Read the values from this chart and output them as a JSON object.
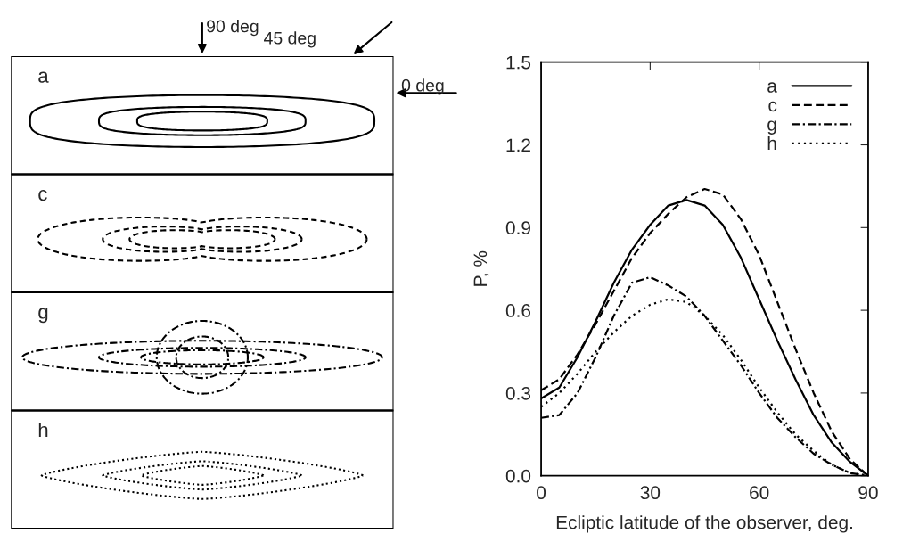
{
  "chart_data": [
    {
      "type": "other",
      "annotations": [
        "a",
        "c",
        "g",
        "h",
        "90 deg",
        "45 deg",
        "0 deg"
      ]
    },
    {
      "type": "line",
      "xlabel": "Ecliptic latitude of the observer, deg.",
      "ylabel": "P, %",
      "x": [
        0,
        5,
        10,
        15,
        20,
        25,
        30,
        35,
        40,
        45,
        50,
        55,
        60,
        65,
        70,
        75,
        80,
        85,
        90
      ],
      "xlim": [
        0,
        90
      ],
      "xticks": [
        0,
        30,
        60,
        90
      ],
      "ylim": [
        0,
        1.5
      ],
      "yticks": [
        {
          "value": 0,
          "label": "0.0"
        },
        0.3,
        0.6,
        0.9,
        1.2,
        1.5
      ],
      "grid": false,
      "legend": "top right",
      "series": [
        {
          "name": "a",
          "color": "#000000",
          "line_style": "solid",
          "values": [
            0.28,
            0.32,
            0.43,
            0.56,
            0.7,
            0.82,
            0.91,
            0.98,
            1.0,
            0.98,
            0.91,
            0.79,
            0.64,
            0.49,
            0.35,
            0.22,
            0.12,
            0.05,
            0.0
          ]
        },
        {
          "name": "c",
          "color": "#000000",
          "line_style": "dashed",
          "values": [
            0.31,
            0.35,
            0.44,
            0.55,
            0.67,
            0.79,
            0.88,
            0.95,
            1.01,
            1.04,
            1.02,
            0.93,
            0.8,
            0.63,
            0.46,
            0.3,
            0.16,
            0.06,
            0.0
          ]
        },
        {
          "name": "g",
          "color": "#000000",
          "line_style": "dashdot",
          "values": [
            0.21,
            0.22,
            0.3,
            0.43,
            0.58,
            0.7,
            0.72,
            0.69,
            0.65,
            0.58,
            0.49,
            0.4,
            0.3,
            0.21,
            0.14,
            0.08,
            0.04,
            0.01,
            0.0
          ]
        },
        {
          "name": "h",
          "color": "#000000",
          "line_style": "dotted",
          "values": [
            0.25,
            0.3,
            0.37,
            0.45,
            0.52,
            0.58,
            0.62,
            0.64,
            0.63,
            0.58,
            0.51,
            0.42,
            0.32,
            0.23,
            0.15,
            0.09,
            0.04,
            0.01,
            0.0
          ]
        }
      ]
    }
  ]
}
